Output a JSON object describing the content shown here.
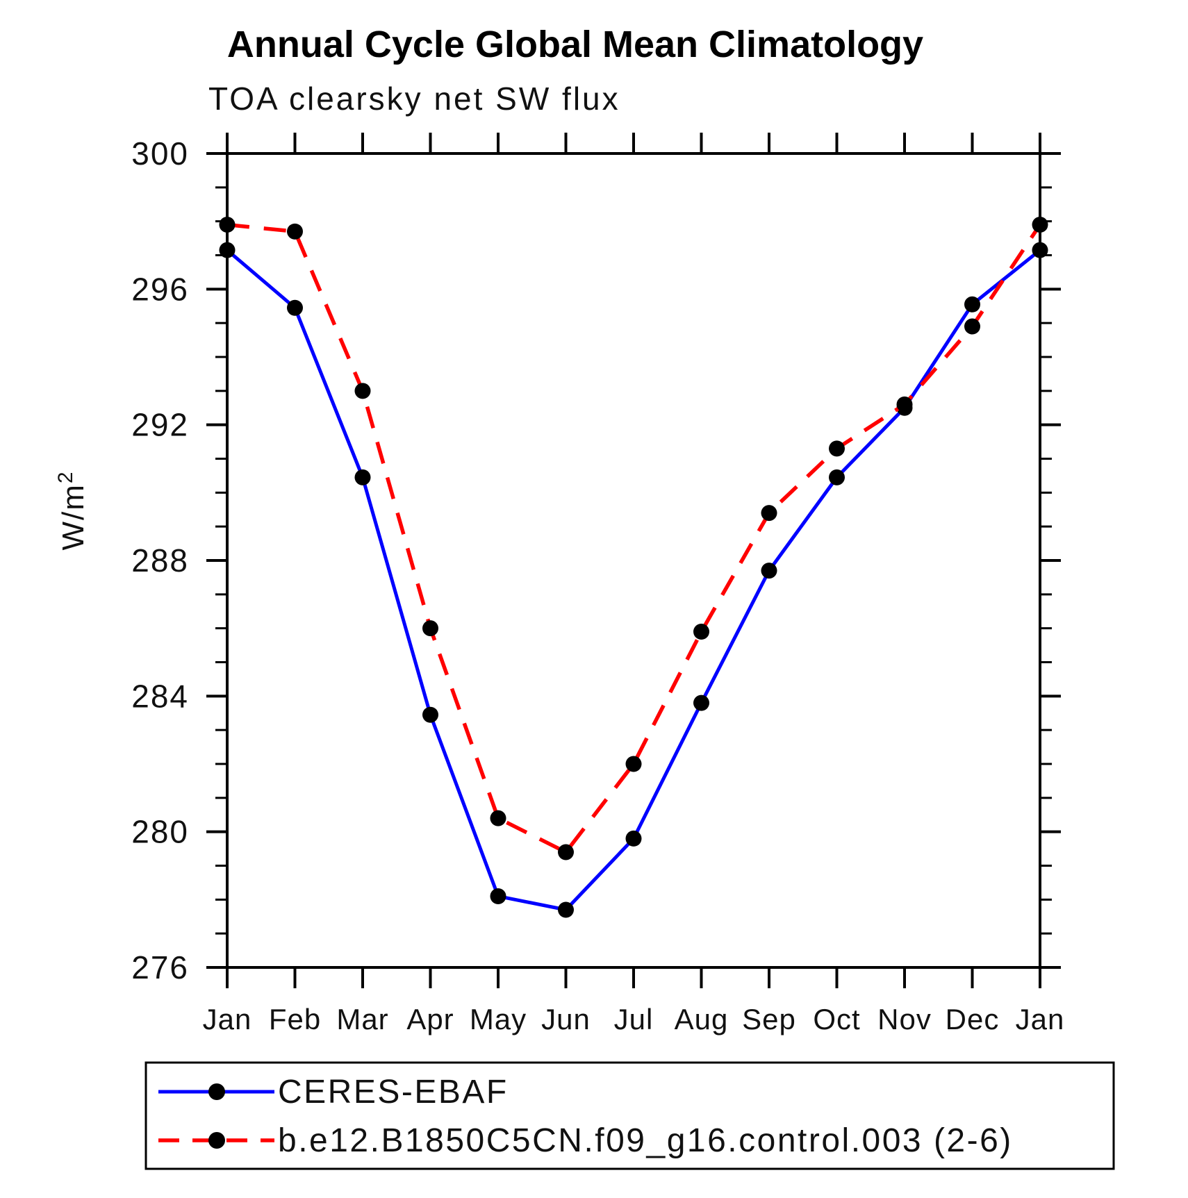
{
  "page": {
    "background": "#ffffff"
  },
  "chart_data": {
    "type": "line",
    "title": "Annual Cycle Global Mean Climatology",
    "subtitle": "TOA clearsky net SW flux",
    "ylabel": "W/m",
    "ylabel_exponent": "2",
    "xlabel": "",
    "categories": [
      "Jan",
      "Feb",
      "Mar",
      "Apr",
      "May",
      "Jun",
      "Jul",
      "Aug",
      "Sep",
      "Oct",
      "Nov",
      "Dec",
      "Jan"
    ],
    "ylim": [
      276,
      300
    ],
    "ytick_major": [
      276,
      280,
      284,
      288,
      292,
      296,
      300
    ],
    "ytick_minor_step": 1,
    "grid": false,
    "legend_position": "bottom-left",
    "marker": {
      "shape": "circle",
      "color": "#000000"
    },
    "frame_color": "#000000",
    "series": [
      {
        "name": "CERES-EBAF",
        "color": "#0000ff",
        "line_style": "solid",
        "values": [
          297.15,
          295.45,
          290.45,
          283.45,
          278.1,
          277.7,
          279.8,
          283.8,
          287.7,
          290.45,
          292.5,
          295.55,
          297.15
        ]
      },
      {
        "name": "b.e12.B1850C5CN.f09_g16.control.003 (2-6)",
        "color": "#ff0000",
        "line_style": "dashed",
        "values": [
          297.9,
          297.7,
          293.0,
          286.0,
          280.4,
          279.4,
          282.0,
          285.9,
          289.4,
          291.3,
          292.6,
          294.9,
          297.9
        ]
      }
    ]
  }
}
